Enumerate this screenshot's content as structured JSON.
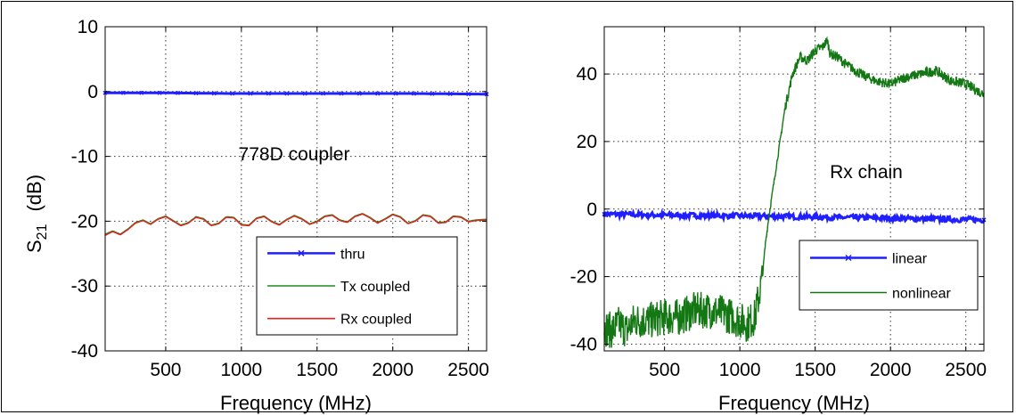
{
  "colors": {
    "thru": "#1f1fff",
    "tx_coupled": "#1f8a1f",
    "rx_coupled": "#e8201e",
    "linear": "#1f1fff",
    "nonlinear": "#137813",
    "grid": "#333333"
  },
  "chart_data": [
    {
      "type": "line",
      "title": "",
      "annotation": "778D coupler",
      "xlabel": "Frequency  (MHz)",
      "ylabel_main": "S",
      "ylabel_sub": "21",
      "ylabel_unit": "(dB)",
      "xlim": [
        100,
        2620
      ],
      "ylim": [
        -40,
        10
      ],
      "xticks": [
        500,
        1000,
        1500,
        2000,
        2500
      ],
      "yticks": [
        -40,
        -30,
        -20,
        -10,
        0,
        10
      ],
      "grid": true,
      "legend_position": "bottom-right",
      "series": [
        {
          "name": "thru",
          "marker": "x",
          "x": [
            100,
            500,
            900,
            1300,
            1700,
            2100,
            2620
          ],
          "y": [
            -0.2,
            -0.2,
            -0.3,
            -0.3,
            -0.3,
            -0.3,
            -0.4
          ]
        },
        {
          "name": "Tx coupled",
          "x": [
            100,
            150,
            200,
            250,
            300,
            350,
            400,
            450,
            500,
            550,
            600,
            650,
            700,
            750,
            800,
            850,
            900,
            950,
            1000,
            1050,
            1100,
            1150,
            1200,
            1250,
            1300,
            1350,
            1400,
            1450,
            1500,
            1550,
            1600,
            1650,
            1700,
            1750,
            1800,
            1850,
            1900,
            1950,
            2000,
            2050,
            2100,
            2150,
            2200,
            2250,
            2300,
            2350,
            2400,
            2450,
            2500,
            2550,
            2620
          ],
          "y": [
            -22.0,
            -21.5,
            -22.0,
            -21.2,
            -20.2,
            -19.8,
            -20.4,
            -19.6,
            -19.2,
            -19.9,
            -20.6,
            -20.2,
            -19.3,
            -19.6,
            -20.6,
            -20.3,
            -19.3,
            -19.4,
            -20.5,
            -20.6,
            -19.5,
            -19.2,
            -20.0,
            -20.5,
            -19.7,
            -19.1,
            -19.6,
            -20.4,
            -20.0,
            -19.2,
            -19.0,
            -19.8,
            -20.1,
            -19.2,
            -18.8,
            -19.4,
            -20.2,
            -19.6,
            -18.9,
            -19.3,
            -20.3,
            -19.9,
            -19.0,
            -19.2,
            -20.2,
            -20.1,
            -19.2,
            -19.3,
            -20.0,
            -19.8,
            -19.7
          ]
        },
        {
          "name": "Rx coupled",
          "x": [
            100,
            150,
            200,
            250,
            300,
            350,
            400,
            450,
            500,
            550,
            600,
            650,
            700,
            750,
            800,
            850,
            900,
            950,
            1000,
            1050,
            1100,
            1150,
            1200,
            1250,
            1300,
            1350,
            1400,
            1450,
            1500,
            1550,
            1600,
            1650,
            1700,
            1750,
            1800,
            1850,
            1900,
            1950,
            2000,
            2050,
            2100,
            2150,
            2200,
            2250,
            2300,
            2350,
            2400,
            2450,
            2500,
            2550,
            2620
          ],
          "y": [
            -22.2,
            -21.6,
            -22.1,
            -21.3,
            -20.3,
            -19.9,
            -20.5,
            -19.7,
            -19.3,
            -20.0,
            -20.7,
            -20.3,
            -19.4,
            -19.7,
            -20.7,
            -20.4,
            -19.4,
            -19.5,
            -20.6,
            -20.7,
            -19.6,
            -19.3,
            -20.1,
            -20.6,
            -19.8,
            -19.2,
            -19.7,
            -20.5,
            -20.1,
            -19.3,
            -19.1,
            -19.9,
            -20.2,
            -19.3,
            -18.9,
            -19.5,
            -20.3,
            -19.7,
            -19.0,
            -19.4,
            -20.4,
            -20.0,
            -19.1,
            -19.3,
            -20.3,
            -20.2,
            -19.3,
            -19.4,
            -20.1,
            -19.9,
            -19.8
          ]
        }
      ]
    },
    {
      "type": "line",
      "title": "",
      "annotation": "Rx chain",
      "xlabel": "Frequency  (MHz)",
      "xlim": [
        100,
        2620
      ],
      "ylim": [
        -42,
        54
      ],
      "xticks": [
        500,
        1000,
        1500,
        2000,
        2500
      ],
      "yticks": [
        -40,
        -20,
        0,
        20,
        40
      ],
      "grid": true,
      "legend_position": "bottom-right",
      "series": [
        {
          "name": "linear",
          "marker": "x",
          "x": [
            100,
            500,
            900,
            1300,
            1700,
            2100,
            2620
          ],
          "y": [
            -1.5,
            -1.8,
            -2.0,
            -2.2,
            -2.5,
            -2.8,
            -3.2
          ]
        },
        {
          "name": "nonlinear",
          "x": [
            100,
            150,
            200,
            250,
            300,
            400,
            500,
            600,
            700,
            800,
            900,
            1000,
            1050,
            1100,
            1150,
            1170,
            1200,
            1250,
            1300,
            1350,
            1400,
            1450,
            1500,
            1550,
            1580,
            1600,
            1650,
            1700,
            1800,
            1900,
            2000,
            2100,
            2200,
            2300,
            2400,
            2500,
            2620
          ],
          "y": [
            -35,
            -36,
            -34,
            -36,
            -33,
            -33,
            -32,
            -32,
            -30,
            -30,
            -31,
            -33,
            -34,
            -32,
            -20,
            -10,
            0,
            15,
            30,
            40,
            45,
            44,
            47,
            48,
            50,
            46,
            45,
            43,
            40,
            38,
            37,
            39,
            40,
            41,
            38,
            37,
            34
          ]
        }
      ]
    }
  ]
}
